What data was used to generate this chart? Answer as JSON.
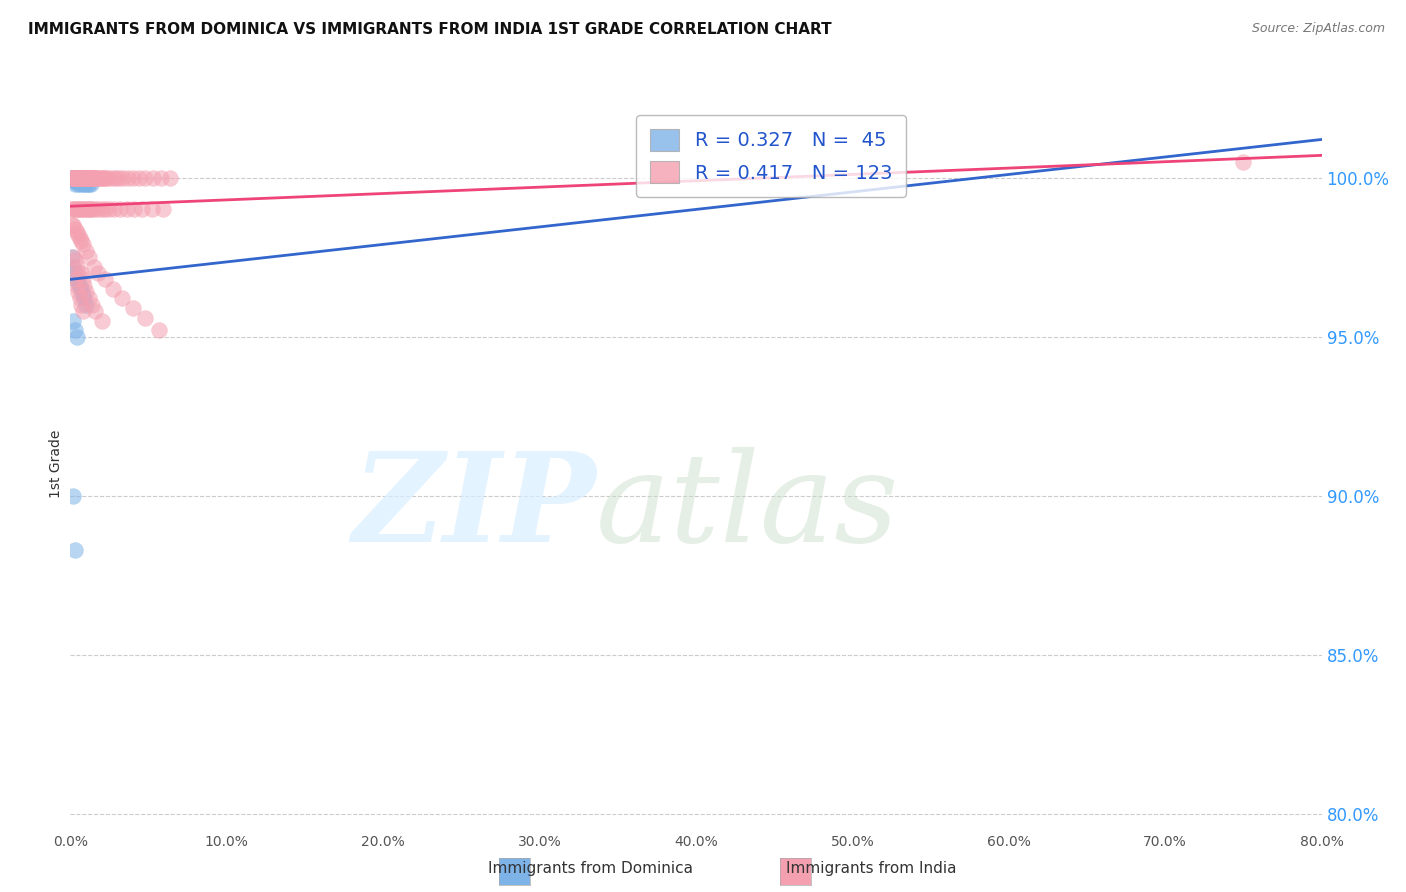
{
  "title": "IMMIGRANTS FROM DOMINICA VS IMMIGRANTS FROM INDIA 1ST GRADE CORRELATION CHART",
  "source_text": "Source: ZipAtlas.com",
  "ylabel": "1st Grade",
  "ylabel_ticks": [
    "100.0%",
    "95.0%",
    "90.0%",
    "85.0%",
    "80.0%"
  ],
  "ylabel_tick_vals": [
    1.0,
    0.95,
    0.9,
    0.85,
    0.8
  ],
  "x_min": 0.0,
  "x_max": 0.8,
  "y_min": 0.795,
  "y_max": 1.025,
  "dominica_color": "#7EB3E8",
  "india_color": "#F4A0B0",
  "trend_dominica_color": "#3366CC",
  "trend_india_color": "#EE4477",
  "R_dominica": 0.327,
  "N_dominica": 45,
  "R_india": 0.417,
  "N_india": 123,
  "legend_dominica": "Immigrants from Dominica",
  "legend_india": "Immigrants from India",
  "dominica_x": [
    0.001,
    0.001,
    0.002,
    0.002,
    0.002,
    0.003,
    0.003,
    0.003,
    0.003,
    0.004,
    0.004,
    0.004,
    0.005,
    0.005,
    0.005,
    0.005,
    0.006,
    0.006,
    0.006,
    0.007,
    0.007,
    0.008,
    0.008,
    0.009,
    0.009,
    0.01,
    0.01,
    0.011,
    0.012,
    0.013,
    0.001,
    0.002,
    0.003,
    0.004,
    0.005,
    0.006,
    0.007,
    0.008,
    0.009,
    0.01,
    0.002,
    0.003,
    0.004,
    0.002,
    0.003
  ],
  "dominica_y": [
    1.0,
    1.0,
    1.0,
    1.0,
    0.999,
    1.0,
    1.0,
    0.999,
    0.998,
    1.0,
    1.0,
    0.999,
    1.0,
    1.0,
    0.999,
    0.998,
    1.0,
    0.999,
    0.998,
    1.0,
    0.999,
    0.999,
    0.998,
    0.999,
    0.998,
    0.999,
    0.998,
    0.998,
    0.998,
    0.998,
    0.975,
    0.972,
    0.97,
    0.968,
    0.967,
    0.966,
    0.965,
    0.963,
    0.962,
    0.96,
    0.955,
    0.952,
    0.95,
    0.9,
    0.883
  ],
  "india_x": [
    0.001,
    0.001,
    0.002,
    0.002,
    0.002,
    0.003,
    0.003,
    0.003,
    0.004,
    0.004,
    0.004,
    0.005,
    0.005,
    0.005,
    0.006,
    0.006,
    0.006,
    0.007,
    0.007,
    0.007,
    0.008,
    0.008,
    0.008,
    0.009,
    0.009,
    0.009,
    0.01,
    0.01,
    0.01,
    0.011,
    0.011,
    0.012,
    0.012,
    0.013,
    0.013,
    0.014,
    0.014,
    0.015,
    0.015,
    0.016,
    0.016,
    0.017,
    0.018,
    0.019,
    0.02,
    0.021,
    0.022,
    0.023,
    0.025,
    0.027,
    0.029,
    0.031,
    0.034,
    0.037,
    0.04,
    0.044,
    0.048,
    0.053,
    0.058,
    0.064,
    0.001,
    0.002,
    0.003,
    0.004,
    0.005,
    0.006,
    0.007,
    0.008,
    0.009,
    0.01,
    0.011,
    0.012,
    0.013,
    0.014,
    0.016,
    0.018,
    0.02,
    0.022,
    0.025,
    0.028,
    0.032,
    0.036,
    0.041,
    0.046,
    0.052,
    0.059,
    0.001,
    0.002,
    0.003,
    0.004,
    0.005,
    0.006,
    0.007,
    0.008,
    0.01,
    0.012,
    0.015,
    0.018,
    0.022,
    0.027,
    0.033,
    0.04,
    0.048,
    0.057,
    0.002,
    0.003,
    0.004,
    0.005,
    0.003,
    0.004,
    0.005,
    0.006,
    0.007,
    0.008,
    0.007,
    0.008,
    0.009,
    0.01,
    0.012,
    0.014,
    0.016,
    0.02,
    0.75
  ],
  "india_y": [
    1.0,
    1.0,
    1.0,
    1.0,
    1.0,
    1.0,
    1.0,
    1.0,
    1.0,
    1.0,
    1.0,
    1.0,
    1.0,
    1.0,
    1.0,
    1.0,
    1.0,
    1.0,
    1.0,
    1.0,
    1.0,
    1.0,
    1.0,
    1.0,
    1.0,
    1.0,
    1.0,
    1.0,
    1.0,
    1.0,
    1.0,
    1.0,
    1.0,
    1.0,
    1.0,
    1.0,
    1.0,
    1.0,
    1.0,
    1.0,
    1.0,
    1.0,
    1.0,
    1.0,
    1.0,
    1.0,
    1.0,
    1.0,
    1.0,
    1.0,
    1.0,
    1.0,
    1.0,
    1.0,
    1.0,
    1.0,
    1.0,
    1.0,
    1.0,
    1.0,
    0.99,
    0.99,
    0.99,
    0.99,
    0.99,
    0.99,
    0.99,
    0.99,
    0.99,
    0.99,
    0.99,
    0.99,
    0.99,
    0.99,
    0.99,
    0.99,
    0.99,
    0.99,
    0.99,
    0.99,
    0.99,
    0.99,
    0.99,
    0.99,
    0.99,
    0.99,
    0.985,
    0.985,
    0.984,
    0.983,
    0.982,
    0.981,
    0.98,
    0.979,
    0.977,
    0.975,
    0.972,
    0.97,
    0.968,
    0.965,
    0.962,
    0.959,
    0.956,
    0.952,
    0.975,
    0.974,
    0.972,
    0.97,
    0.968,
    0.966,
    0.964,
    0.962,
    0.96,
    0.958,
    0.97,
    0.968,
    0.966,
    0.964,
    0.962,
    0.96,
    0.958,
    0.955,
    1.005
  ]
}
